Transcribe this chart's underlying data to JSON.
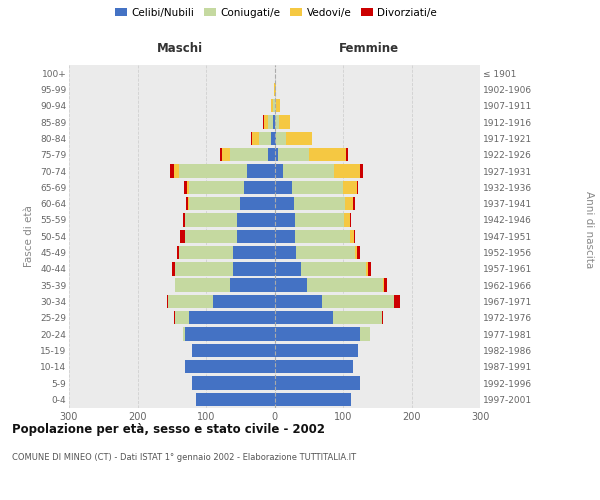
{
  "age_groups": [
    "0-4",
    "5-9",
    "10-14",
    "15-19",
    "20-24",
    "25-29",
    "30-34",
    "35-39",
    "40-44",
    "45-49",
    "50-54",
    "55-59",
    "60-64",
    "65-69",
    "70-74",
    "75-79",
    "80-84",
    "85-89",
    "90-94",
    "95-99",
    "100+"
  ],
  "birth_years": [
    "1997-2001",
    "1992-1996",
    "1987-1991",
    "1982-1986",
    "1977-1981",
    "1972-1976",
    "1967-1971",
    "1962-1966",
    "1957-1961",
    "1952-1956",
    "1947-1951",
    "1942-1946",
    "1937-1941",
    "1932-1936",
    "1927-1931",
    "1922-1926",
    "1917-1921",
    "1912-1916",
    "1907-1911",
    "1902-1906",
    "≤ 1901"
  ],
  "maschi": {
    "celibi": [
      115,
      120,
      130,
      120,
      130,
      125,
      90,
      65,
      60,
      60,
      55,
      55,
      50,
      45,
      40,
      10,
      5,
      2,
      0,
      0,
      0
    ],
    "coniugati": [
      0,
      0,
      0,
      0,
      3,
      20,
      65,
      80,
      85,
      80,
      75,
      75,
      75,
      80,
      100,
      55,
      18,
      7,
      2,
      0,
      0
    ],
    "vedovi": [
      0,
      0,
      0,
      0,
      0,
      0,
      0,
      0,
      0,
      0,
      0,
      0,
      2,
      3,
      7,
      12,
      10,
      7,
      3,
      1,
      0
    ],
    "divorziati": [
      0,
      0,
      0,
      0,
      0,
      2,
      2,
      0,
      4,
      2,
      8,
      4,
      2,
      4,
      6,
      2,
      2,
      1,
      0,
      0,
      0
    ]
  },
  "femmine": {
    "nubili": [
      112,
      125,
      115,
      122,
      125,
      85,
      70,
      48,
      38,
      32,
      30,
      30,
      28,
      25,
      12,
      5,
      2,
      1,
      0,
      0,
      0
    ],
    "coniugate": [
      0,
      0,
      0,
      0,
      15,
      72,
      105,
      110,
      95,
      85,
      80,
      72,
      75,
      75,
      75,
      45,
      15,
      6,
      2,
      0,
      0
    ],
    "vedove": [
      0,
      0,
      0,
      0,
      0,
      0,
      0,
      2,
      4,
      4,
      6,
      8,
      12,
      20,
      38,
      55,
      38,
      16,
      6,
      2,
      1
    ],
    "divorziate": [
      0,
      0,
      0,
      0,
      0,
      2,
      8,
      4,
      4,
      4,
      2,
      2,
      2,
      2,
      4,
      2,
      0,
      0,
      0,
      0,
      0
    ]
  },
  "colors": {
    "celibi": "#4472C4",
    "coniugati": "#C5D9A0",
    "vedovi": "#F5C842",
    "divorziati": "#CC0000"
  },
  "xlim": 300,
  "title": "Popolazione per età, sesso e stato civile - 2002",
  "subtitle": "COMUNE DI MINEO (CT) - Dati ISTAT 1° gennaio 2002 - Elaborazione TUTTITALIA.IT",
  "ylabel_left": "Fasce di età",
  "ylabel_right": "Anni di nascita",
  "xlabel_maschi": "Maschi",
  "xlabel_femmine": "Femmine",
  "legend_labels": [
    "Celibi/Nubili",
    "Coniugati/e",
    "Vedovi/e",
    "Divorziati/e"
  ],
  "bg_color": "#ffffff",
  "plot_bg": "#ebebeb",
  "grid_color": "#d0d0d0"
}
